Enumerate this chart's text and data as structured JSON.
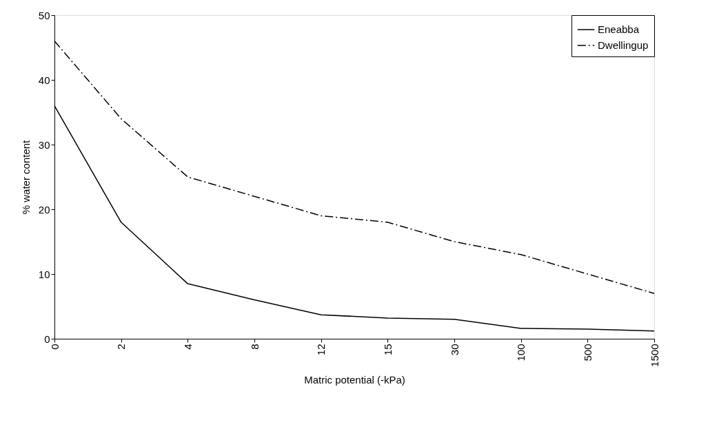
{
  "chart_data": {
    "type": "line",
    "xlabel": "Matric potential (-kPa)",
    "ylabel": "% water content",
    "categories": [
      "0",
      "2",
      "4",
      "8",
      "12",
      "15",
      "30",
      "100",
      "500",
      "1500"
    ],
    "series": [
      {
        "name": "Eneabba",
        "color": "#000000",
        "line_style": "solid",
        "values": [
          36,
          18,
          8.5,
          6,
          3.7,
          3.2,
          3,
          1.6,
          1.5,
          1.2
        ]
      },
      {
        "name": "Dwellingup",
        "color": "#000000",
        "line_style": "dashed",
        "values": [
          46,
          34,
          25,
          22,
          19,
          18,
          15,
          13,
          10,
          7
        ]
      }
    ],
    "ylim": [
      0,
      50
    ],
    "yticks": [
      0,
      10,
      20,
      30,
      40,
      50
    ],
    "grid": false,
    "legend": "top right",
    "marker": "none"
  }
}
